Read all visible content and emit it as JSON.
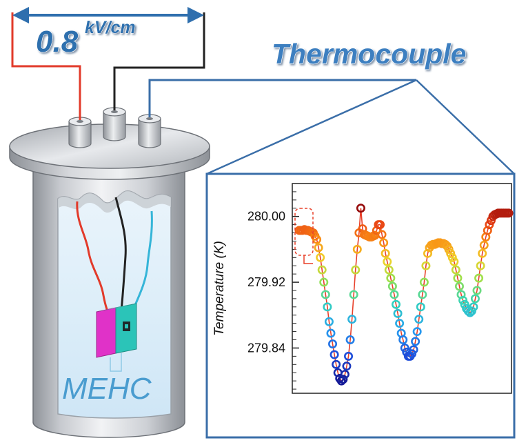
{
  "field": {
    "value": "0.8",
    "unit": "kV/cm"
  },
  "thermocouple_label": "Thermocouple",
  "sample_label": "MEHC",
  "colors": {
    "accent_blue": "#2f6fae",
    "frame_blue": "#3a6ea8",
    "red_lead": "#e23a2a",
    "black_lead": "#222222",
    "cyan_lead": "#35b5d8",
    "sample_magenta": "#e032c8",
    "sample_teal": "#2bc4b8",
    "trace_red": "#e8402a"
  },
  "chart_data": {
    "type": "scatter",
    "ylabel": "Temperature (K)",
    "xlabel": "",
    "ylim": [
      279.785,
      280.04
    ],
    "yticks": [
      "280.00",
      "279.92",
      "279.84"
    ],
    "ytick_values": [
      280.0,
      279.92,
      279.84
    ],
    "x": [
      0,
      1,
      2,
      3,
      4,
      5,
      6,
      7,
      8,
      9,
      10,
      11,
      12,
      13,
      14,
      15,
      16,
      17,
      18,
      19,
      20,
      21,
      22,
      23,
      24,
      25,
      26,
      27,
      28,
      29,
      30,
      31,
      32,
      33,
      34,
      35,
      36,
      37,
      38,
      39,
      40,
      41,
      42,
      43,
      44,
      45,
      46,
      47,
      48,
      49,
      50,
      51,
      52,
      53,
      54,
      55,
      56,
      57,
      58,
      59,
      60,
      61,
      62,
      63,
      64,
      65,
      66,
      67,
      68,
      69,
      70,
      71,
      72,
      73,
      74,
      75,
      76,
      77,
      78,
      79,
      80,
      81,
      82,
      83,
      84,
      85,
      86,
      87,
      88,
      89,
      90,
      91,
      92,
      93,
      94,
      95,
      96,
      97,
      98,
      99,
      100,
      101,
      102,
      103,
      104,
      105,
      106,
      107,
      108,
      109,
      110,
      111,
      112,
      113,
      114,
      115,
      116,
      117,
      118,
      119
    ],
    "values": [
      279.983,
      279.983,
      279.983,
      279.984,
      279.983,
      279.983,
      279.982,
      279.981,
      279.98,
      279.976,
      279.972,
      279.962,
      279.95,
      279.935,
      279.92,
      279.905,
      279.89,
      279.872,
      279.858,
      279.845,
      279.832,
      279.82,
      279.81,
      279.803,
      279.8,
      279.802,
      279.808,
      279.818,
      279.83,
      279.85,
      279.875,
      279.905,
      279.935,
      279.96,
      279.98,
      280.01,
      279.985,
      279.978,
      279.977,
      279.976,
      279.975,
      279.975,
      279.976,
      279.977,
      279.983,
      279.99,
      279.99,
      279.978,
      279.968,
      279.955,
      279.945,
      279.935,
      279.925,
      279.915,
      279.905,
      279.893,
      279.882,
      279.87,
      279.858,
      279.85,
      279.84,
      279.835,
      279.83,
      279.83,
      279.833,
      279.838,
      279.848,
      279.86,
      279.875,
      279.89,
      279.905,
      279.92,
      279.94,
      279.955,
      279.962,
      279.965,
      279.966,
      279.966,
      279.967,
      279.968,
      279.968,
      279.967,
      279.967,
      279.966,
      279.964,
      279.96,
      279.955,
      279.95,
      279.945,
      279.935,
      279.925,
      279.915,
      279.905,
      279.898,
      279.893,
      279.888,
      279.885,
      279.883,
      279.885,
      279.89,
      279.9,
      279.91,
      279.925,
      279.94,
      279.955,
      279.965,
      279.975,
      279.983,
      279.99,
      279.995,
      280.0,
      280.002,
      280.003,
      280.004,
      280.004,
      280.004,
      280.004,
      280.004,
      280.004,
      280.004
    ]
  }
}
